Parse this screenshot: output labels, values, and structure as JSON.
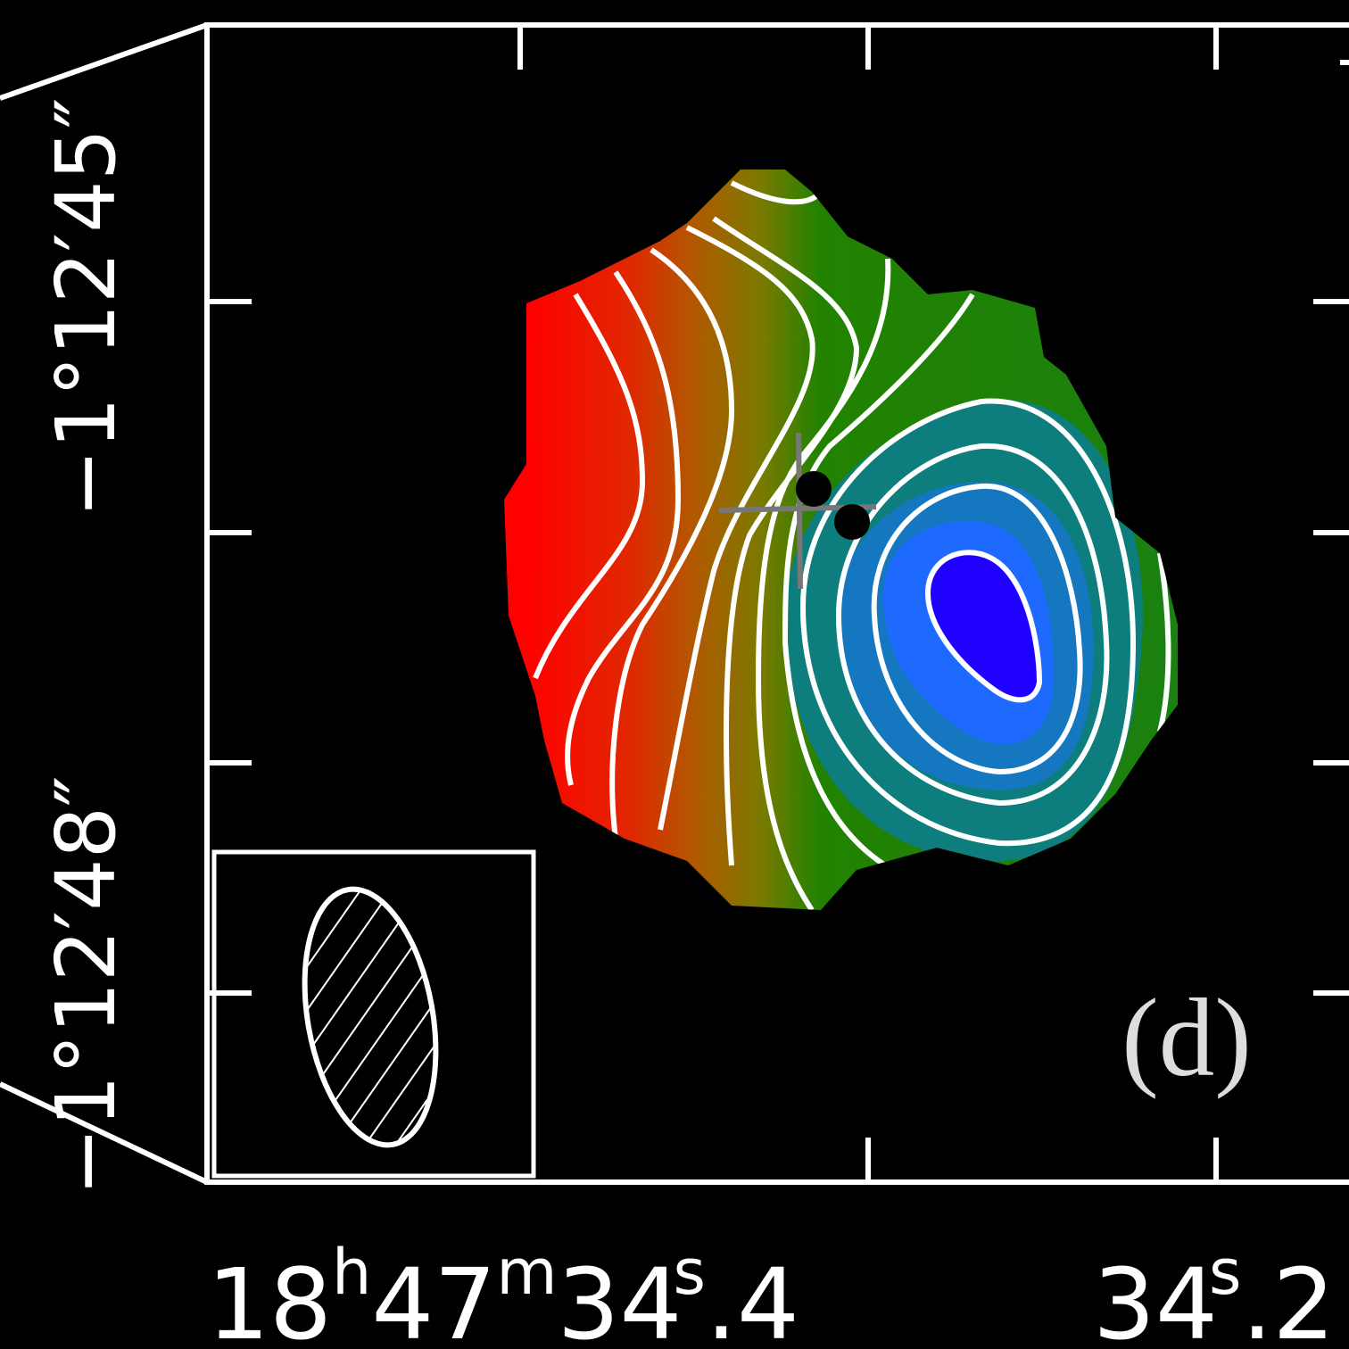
{
  "panel_label": "(d)",
  "y_axis": {
    "labels": [
      "−1°12′45″",
      "−1°12′48″"
    ]
  },
  "x_axis": {
    "labels": [
      [
        "18",
        "h",
        "47",
        "m",
        "34",
        "s",
        ".4"
      ],
      [
        "34",
        "s",
        ".2"
      ]
    ]
  }
}
